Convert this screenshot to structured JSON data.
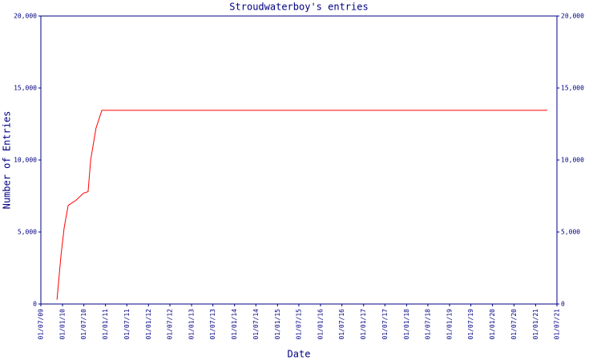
{
  "chart_data": {
    "type": "line",
    "title": "Stroudwaterboy's entries",
    "x_label": "Date",
    "y_label": "Number of Entries",
    "x": [
      "15/11/09",
      "18/12/09",
      "15/01/10",
      "18/02/10",
      "25/04/10",
      "28/06/10",
      "06/08/10",
      "28/08/10",
      "12/10/10",
      "01/12/10",
      "10/04/21"
    ],
    "series": [
      {
        "name": "Stroudwaterboy",
        "color": "#ff0000",
        "values": [
          300,
          3300,
          5300,
          6850,
          7200,
          7700,
          7800,
          10000,
          12200,
          13450,
          13450
        ]
      }
    ],
    "xlim": [
      "01/07/09",
      "01/07/21"
    ],
    "xticks": [
      "01/07/09",
      "01/01/10",
      "01/07/10",
      "01/01/11",
      "01/07/11",
      "01/01/12",
      "01/07/12",
      "01/01/13",
      "01/07/13",
      "01/01/14",
      "01/07/14",
      "01/01/15",
      "01/07/15",
      "01/01/16",
      "01/07/16",
      "01/01/17",
      "01/07/17",
      "01/01/18",
      "01/07/18",
      "01/01/19",
      "01/07/19",
      "01/01/20",
      "01/07/20",
      "01/01/21",
      "01/07/21"
    ],
    "ylim": [
      0,
      20000
    ],
    "yticks": [
      0,
      {
        "value": 5000,
        "label": "5,000"
      },
      {
        "value": 10000,
        "label": "10,000"
      },
      {
        "value": 15000,
        "label": "15,000"
      },
      {
        "value": 20000,
        "label": "20,000"
      }
    ],
    "axis_color": "#000080"
  }
}
